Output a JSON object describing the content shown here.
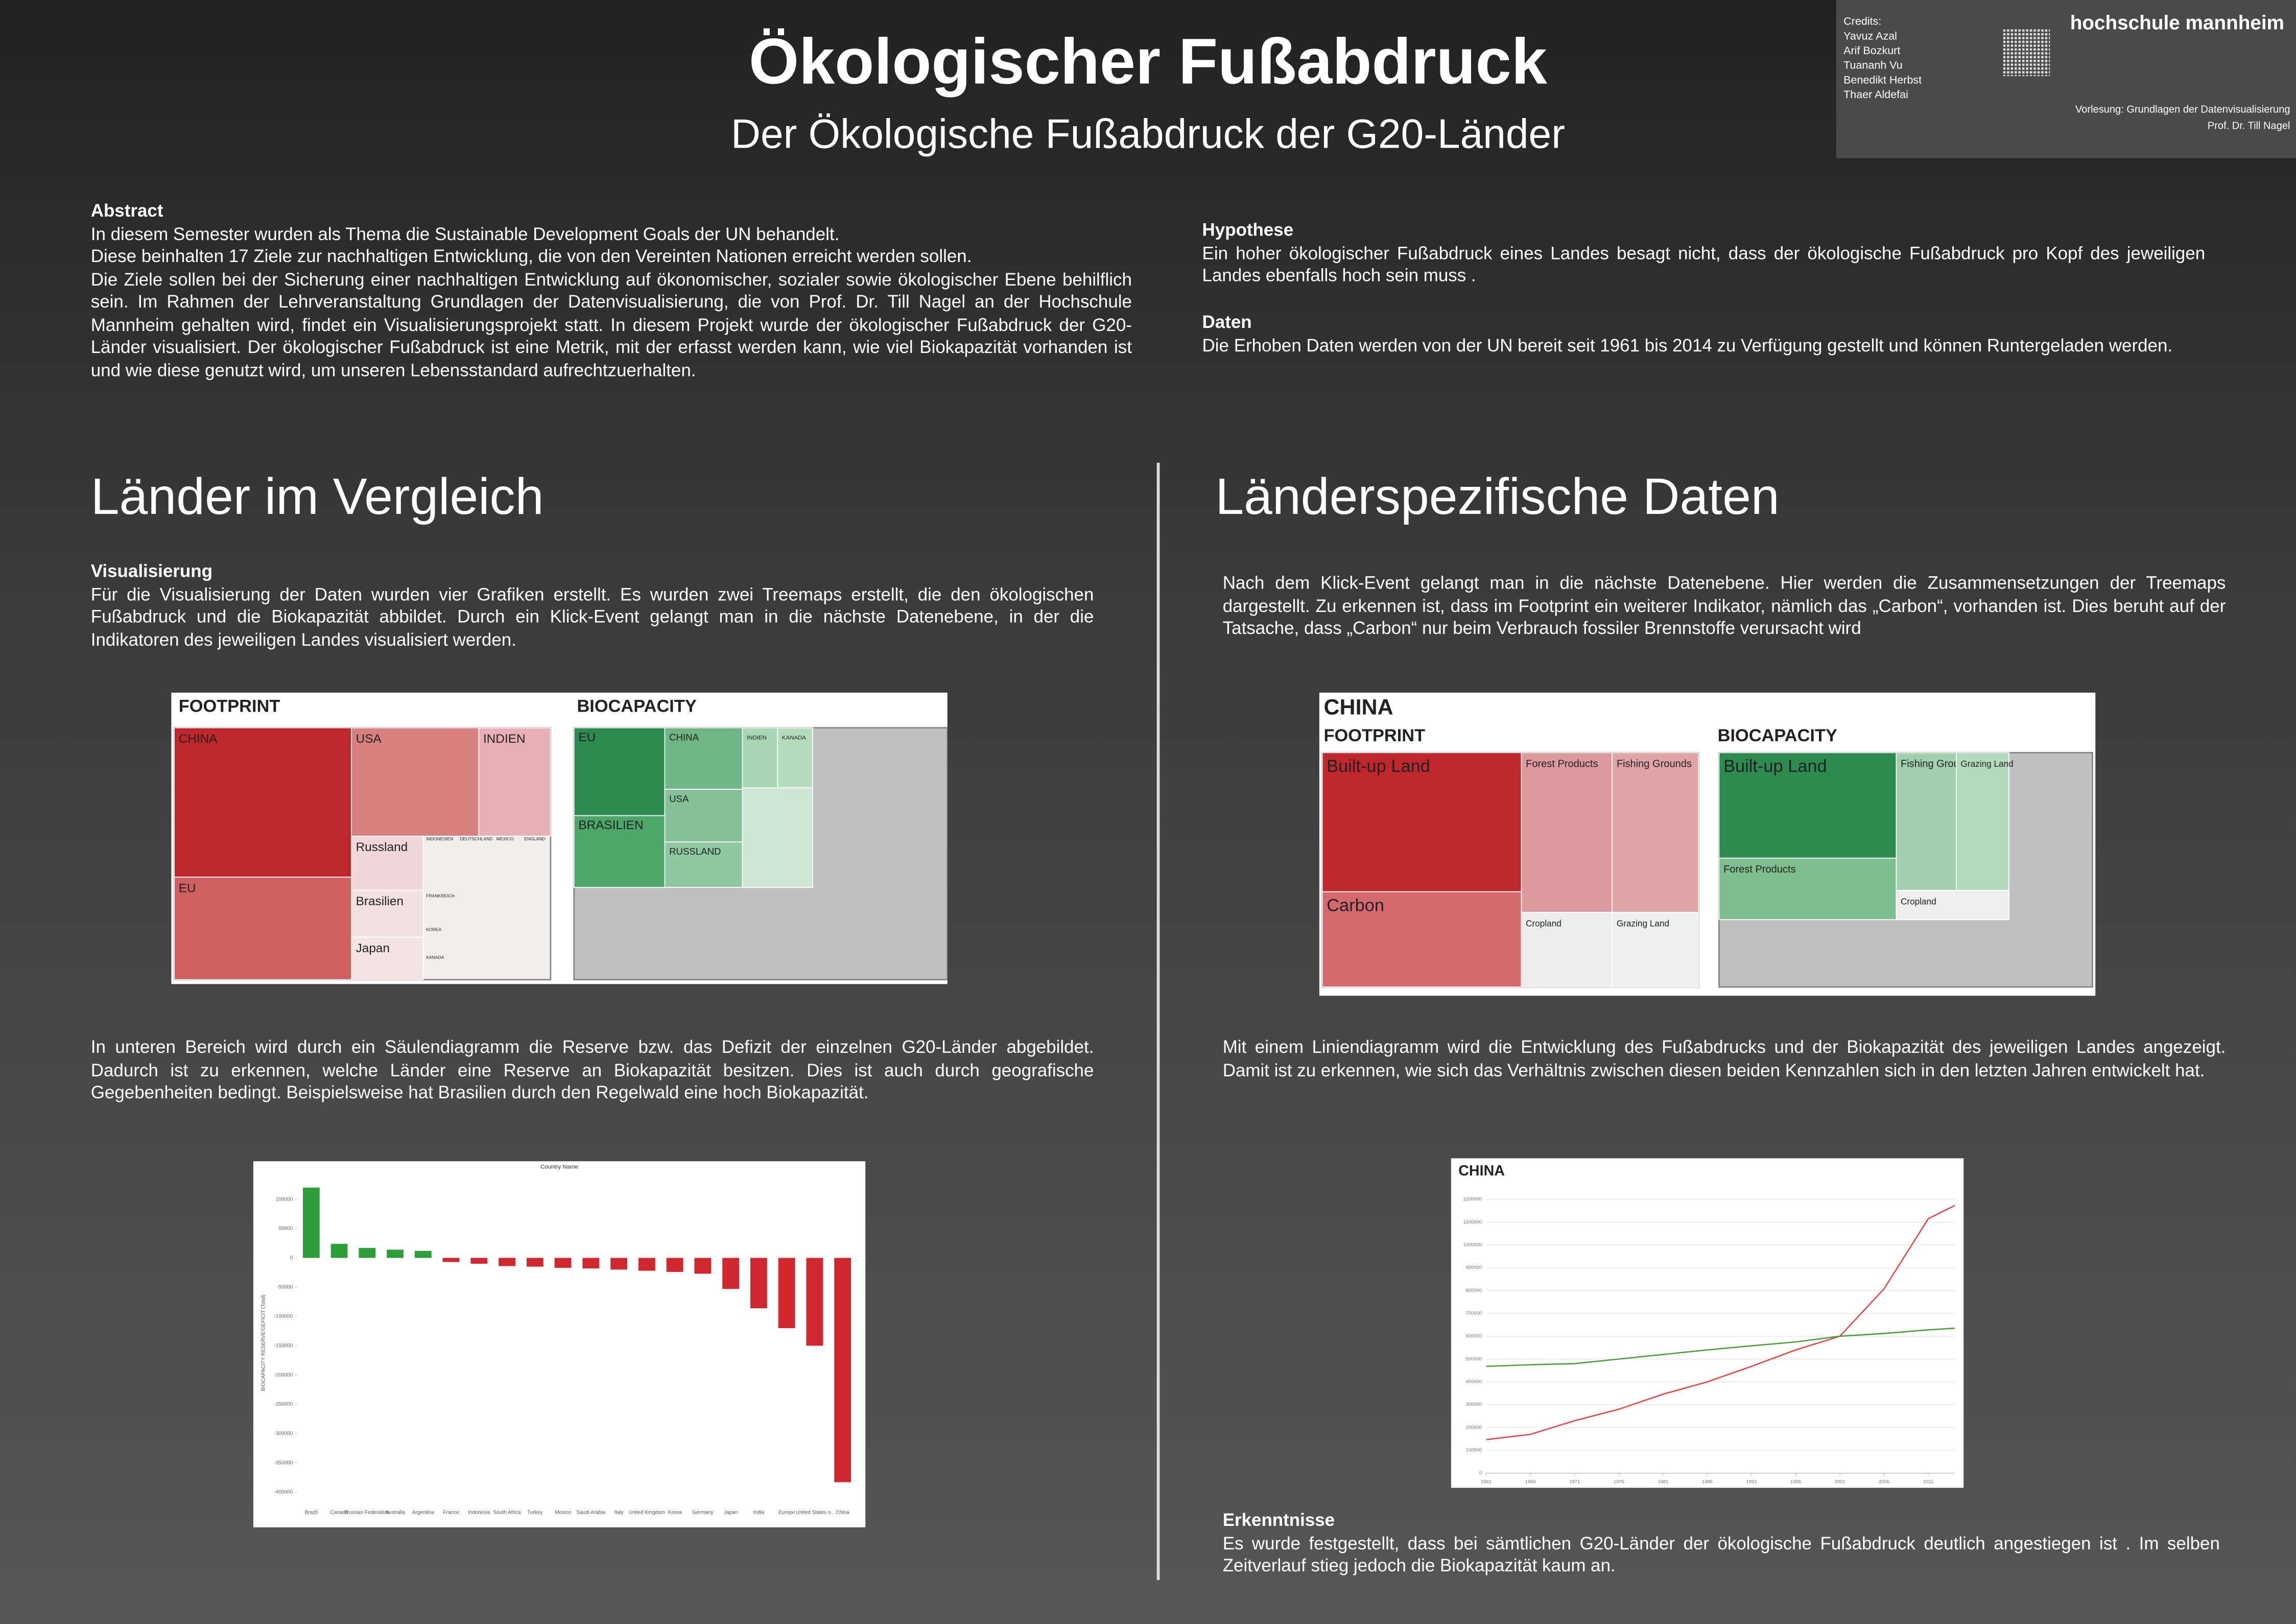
{
  "header": {
    "title": "Ökologischer Fußabdruck",
    "subtitle": "Der Ökologische Fußabdruck der G20-Länder",
    "credits_label": "Credits:",
    "credits": [
      "Yavuz Azal",
      "Arif Bozkurt",
      "Tuananh Vu",
      "Benedikt Herbst",
      "Thaer Aldefai"
    ],
    "logo": "hochschule mannheim",
    "lecture": "Vorlesung: Grundlagen der Datenvisualisierung",
    "professor": "Prof. Dr. Till Nagel"
  },
  "abstract": {
    "heading": "Abstract",
    "paragraphs": [
      "In diesem Semester wurden als Thema  die Sustainable Development Goals der UN behandelt.",
      "Diese beinhalten 17 Ziele zur nachhaltigen Entwicklung, die von den Vereinten Nationen erreicht werden sollen.",
      "Die Ziele sollen bei der Sicherung einer nachhaltigen Entwicklung auf ökonomischer, sozialer sowie ökologischer Ebene behilflich sein. Im Rahmen der Lehrveranstaltung Grundlagen der Datenvisualisierung, die von Prof. Dr. Till Nagel an der Hochschule Mannheim gehalten wird, findet ein Visualisierungsprojekt statt. In diesem Projekt wurde der ökologischer Fußabdruck der G20-Länder visualisiert. Der ökologischer Fußabdruck ist eine Metrik, mit der erfasst werden kann, wie viel Biokapazität vorhanden ist und wie diese genutzt wird, um unseren Lebensstandard aufrechtzuerhalten."
    ]
  },
  "hypothese": {
    "heading": "Hypothese",
    "text": "Ein hoher ökologischer Fußabdruck eines Landes besagt nicht, dass der ökologische Fußabdruck pro Kopf des jeweiligen Landes ebenfalls hoch sein muss ."
  },
  "daten": {
    "heading": "Daten",
    "text": "Die Erhoben Daten werden von der UN bereit seit 1961 bis 2014 zu Verfügung gestellt und können Runtergeladen werden."
  },
  "left": {
    "heading": "Länder im Vergleich",
    "vis_heading": "Visualisierung",
    "vis_text": "Für die Visualisierung der Daten wurden vier Grafiken erstellt. Es wurden zwei Treemaps erstellt, die den ökologischen Fußabdruck und die Biokapazität abbildet. Durch ein Klick-Event gelangt man in die nächste Datenebene, in der die Indikatoren des jeweiligen Landes visualisiert werden.",
    "bar_text": "In unteren Bereich wird durch ein Säulendiagramm die Reserve bzw. das Defizit der einzelnen G20-Länder abgebildet. Dadurch ist zu erkennen, welche Länder eine Reserve an Biokapazität besitzen. Dies ist auch durch geografische Gegebenheiten bedingt. Beispielsweise hat Brasilien durch den Regelwald eine hoch Biokapazität."
  },
  "right": {
    "heading": "Länderspezifische Daten",
    "treemap_text": "Nach dem Klick-Event gelangt man in die nächste Datenebene. Hier werden die Zusammensetzungen der Treemaps dargestellt. Zu erkennen ist, dass im Footprint ein weiterer Indikator, nämlich das „Carbon“, vorhanden ist. Dies beruht auf der Tatsache, dass „Carbon“ nur beim Verbrauch fossiler Brennstoffe verursacht wird",
    "line_text": "Mit einem Liniendiagramm wird die Entwicklung des Fußabdrucks und der Biokapazität des jeweiligen Landes angezeigt. Damit ist zu erkennen, wie sich das Verhältnis zwischen diesen beiden Kennzahlen sich in den letzten Jahren entwickelt hat.",
    "result_heading": "Erkenntnisse",
    "result_text": "Es wurde festgestellt, dass bei sämtlichen G20-Länder der ökologische Fußabdruck deutlich angestiegen ist . Im selben Zeitverlauf stieg jedoch die Biokapazität kaum an."
  },
  "treemaps": {
    "overview": {
      "footprint_title": "FOOTPRINT",
      "biocapacity_title": "BIOCAPACITY",
      "footprint_labels": [
        "CHINA",
        "USA",
        "INDIEN",
        "EU",
        "Russland",
        "Brasilien",
        "Japan",
        "INDONESIEN",
        "DEUTSCHLAND",
        "MEXICO",
        "ENGLAND",
        "FRANKREICH",
        "KOREA",
        "KANADA"
      ],
      "biocapacity_labels": [
        "EU",
        "CHINA",
        "INDIEN",
        "KANADA",
        "USA",
        "BRASILIEN",
        "RUSSLAND"
      ]
    },
    "china": {
      "title": "CHINA",
      "footprint_title": "FOOTPRINT",
      "biocapacity_title": "BIOCAPACITY",
      "footprint_labels": [
        "Built-up Land",
        "Forest Products",
        "Fishing Grounds",
        "Carbon",
        "Cropland",
        "Grazing Land"
      ],
      "biocapacity_labels": [
        "Built-up Land",
        "Fishing Grounds",
        "Grazing Land",
        "Forest Products",
        "Cropland"
      ]
    }
  },
  "chart_data": [
    {
      "type": "bar",
      "title": "Country Name",
      "y_label": "BIOCAPACITY RESERVE/DEFICIT (Total)",
      "categories": [
        "Brazil",
        "Canada",
        "Russian Federation",
        "Australia",
        "Argentina",
        "France",
        "Indonesia",
        "South Africa",
        "Turkey",
        "Mexico",
        "Saudi Arabia",
        "Italy",
        "United Kingdom",
        "Korea",
        "Germany",
        "Japan",
        "India",
        "Europe",
        "United States o..",
        "China"
      ],
      "values": [
        120000,
        24000,
        17000,
        14000,
        12000,
        -7000,
        -10000,
        -14000,
        -15000,
        -17000,
        -18000,
        -20000,
        -22000,
        -24000,
        -27000,
        -53000,
        -86000,
        -120000,
        -150000,
        -383000
      ],
      "color_positive": "#2e9e3a",
      "color_negative": "#d0282e",
      "ylim": [
        -420000,
        130000
      ],
      "yticks": [
        100000,
        50000,
        0,
        -50000,
        -100000,
        -150000,
        -200000,
        -250000,
        -300000,
        -350000,
        -400000
      ],
      "grid": false
    },
    {
      "type": "line",
      "title": "CHINA",
      "x": [
        1961,
        1966,
        1971,
        1976,
        1981,
        1986,
        1991,
        1996,
        2001,
        2006,
        2011,
        2014
      ],
      "series": [
        {
          "color": "#e0454a",
          "values": [
            147000,
            170000,
            230000,
            280000,
            346000,
            400000,
            468000,
            540000,
            600000,
            808000,
            1115000,
            1173000
          ]
        },
        {
          "color": "#4a9e3a",
          "values": [
            468000,
            475000,
            480000,
            500000,
            520000,
            540000,
            558000,
            575000,
            600000,
            612000,
            628000,
            635000
          ]
        }
      ],
      "xlim": [
        1961,
        2014
      ],
      "xticks": [
        1961,
        1966,
        1971,
        1976,
        1981,
        1986,
        1991,
        1996,
        2001,
        2006,
        2011
      ],
      "ylim": [
        0,
        1200000
      ],
      "yticks": [
        0,
        100000,
        200000,
        300000,
        400000,
        500000,
        600000,
        700000,
        800000,
        900000,
        1000000,
        1100000,
        1200000
      ],
      "grid": true
    }
  ]
}
